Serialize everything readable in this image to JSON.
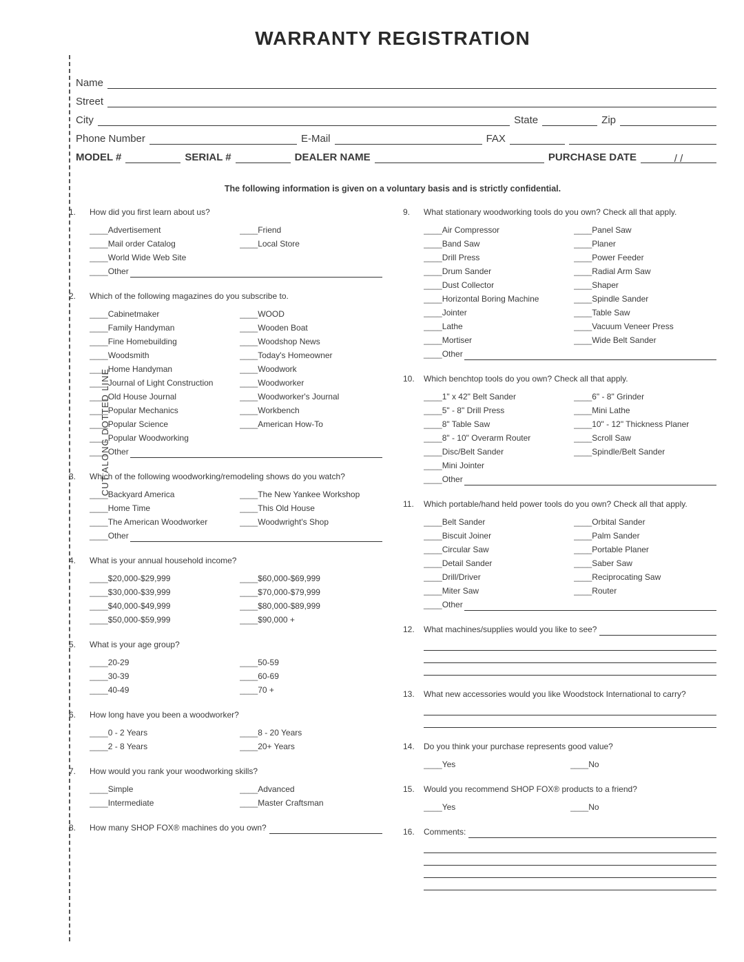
{
  "title": "WARRANTY REGISTRATION",
  "vertical_label": "CUT ALONG DOTTED LINE",
  "header": {
    "name": "Name",
    "street": "Street",
    "city": "City",
    "state": "State",
    "zip": "Zip",
    "phone": "Phone Number",
    "email": "E-Mail",
    "fax": "FAX",
    "model": "MODEL #",
    "serial": "SERIAL #",
    "dealer": "DEALER NAME",
    "purchase": "PURCHASE DATE",
    "slashes": "/       /"
  },
  "voluntary": "The following information is given on a voluntary basis and is strictly confidential.",
  "other_label": "Other",
  "yes": "Yes",
  "no": "No",
  "q1": {
    "num": "1.",
    "text": "How did you first learn about us?",
    "col1": [
      "Advertisement",
      "Mail order Catalog",
      "World Wide Web Site"
    ],
    "col2": [
      "Friend",
      "Local Store"
    ]
  },
  "q2": {
    "num": "2.",
    "text": "Which of the following magazines do you subscribe to.",
    "col1": [
      "Cabinetmaker",
      "Family Handyman",
      "Fine Homebuilding",
      "Woodsmith",
      "Home Handyman",
      "Journal of Light Construction",
      "Old House Journal",
      "Popular Mechanics",
      "Popular Science",
      "Popular Woodworking"
    ],
    "col2": [
      "WOOD",
      "Wooden Boat",
      "Woodshop News",
      "Today's Homeowner",
      "Woodwork",
      "Woodworker",
      "Woodworker's Journal",
      "Workbench",
      "American How-To"
    ]
  },
  "q3": {
    "num": "3.",
    "text": "Which of the following woodworking/remodeling shows do you watch?",
    "col1": [
      "Backyard America",
      "Home Time",
      "The American Woodworker"
    ],
    "col2": [
      "The New Yankee Workshop",
      "This Old House",
      "Woodwright's Shop"
    ]
  },
  "q4": {
    "num": "4.",
    "text": "What is your annual household income?",
    "col1": [
      "$20,000-$29,999",
      "$30,000-$39,999",
      "$40,000-$49,999",
      "$50,000-$59,999"
    ],
    "col2": [
      "$60,000-$69,999",
      "$70,000-$79,999",
      "$80,000-$89,999",
      "$90,000 +"
    ]
  },
  "q5": {
    "num": "5.",
    "text": "What is your age group?",
    "col1": [
      "20-29",
      "30-39",
      "40-49"
    ],
    "col2": [
      "50-59",
      "60-69",
      "70 +"
    ]
  },
  "q6": {
    "num": "6.",
    "text": "How long have you been a woodworker?",
    "col1": [
      "0 - 2 Years",
      "2 - 8 Years"
    ],
    "col2": [
      "8 - 20 Years",
      "20+ Years"
    ]
  },
  "q7": {
    "num": "7.",
    "text": "How would you rank your woodworking skills?",
    "col1": [
      "Simple",
      "Intermediate"
    ],
    "col2": [
      "Advanced",
      "Master Craftsman"
    ]
  },
  "q8": {
    "num": "8.",
    "text": "How many SHOP FOX® machines do you own?"
  },
  "q9": {
    "num": "9.",
    "text": "What stationary woodworking tools do you own? Check all that apply.",
    "col1": [
      "Air Compressor",
      "Band Saw",
      "Drill Press",
      "Drum Sander",
      "Dust Collector",
      "Horizontal Boring Machine",
      "Jointer",
      "Lathe",
      "Mortiser"
    ],
    "col2": [
      "Panel Saw",
      "Planer",
      "Power Feeder",
      "Radial Arm Saw",
      "Shaper",
      "Spindle Sander",
      "Table Saw",
      "Vacuum Veneer Press",
      "Wide Belt Sander"
    ]
  },
  "q10": {
    "num": "10.",
    "text": "Which benchtop tools do you own? Check all that apply.",
    "col1": [
      "1\" x 42\" Belt Sander",
      "5\" - 8\" Drill Press",
      "8\" Table Saw",
      "8\" - 10\" Overarm Router",
      "Disc/Belt Sander",
      "Mini Jointer"
    ],
    "col2": [
      "6\" - 8\" Grinder",
      "Mini Lathe",
      "10\" - 12\" Thickness Planer",
      "Scroll Saw",
      "Spindle/Belt Sander"
    ]
  },
  "q11": {
    "num": "11.",
    "text": "Which portable/hand held power tools do you own? Check all that apply.",
    "col1": [
      "Belt Sander",
      "Biscuit Joiner",
      "Circular Saw",
      "Detail Sander",
      "Drill/Driver",
      "Miter Saw"
    ],
    "col2": [
      "Orbital Sander",
      "Palm Sander",
      "Portable Planer",
      "Saber Saw",
      "Reciprocating Saw",
      "Router"
    ]
  },
  "q12": {
    "num": "12.",
    "text": "What machines/supplies would you like to see?"
  },
  "q13": {
    "num": "13.",
    "text": "What new accessories would you like Woodstock International to carry?"
  },
  "q14": {
    "num": "14.",
    "text": "Do you think your purchase represents good value?"
  },
  "q15": {
    "num": "15.",
    "text": "Would you recommend SHOP FOX® products to a friend?"
  },
  "q16": {
    "num": "16.",
    "text": "Comments:"
  }
}
